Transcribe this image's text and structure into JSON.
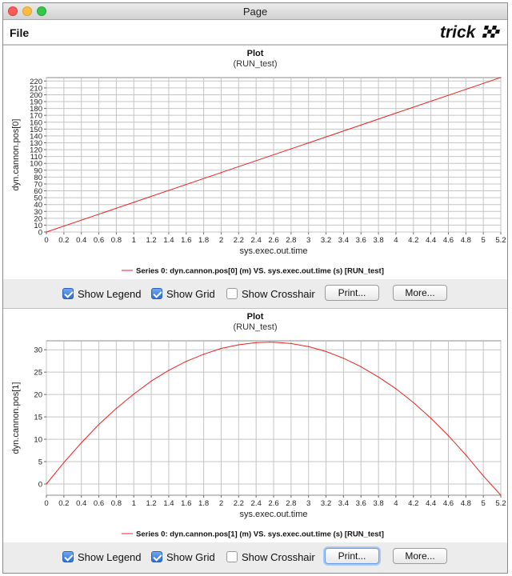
{
  "window": {
    "title": "Page"
  },
  "menu": {
    "file_label": "File",
    "logo_text": "trick"
  },
  "plots": [
    {
      "title": "Plot",
      "subtitle": "(RUN_test)",
      "xlabel": "sys.exec.out.time",
      "ylabel": "dyn.cannon.pos[0]",
      "legend": "Series 0: dyn.cannon.pos[0] (m) VS. sys.exec.out.time (s) [RUN_test]",
      "show_legend_label": "Show Legend",
      "show_grid_label": "Show Grid",
      "show_crosshair_label": "Show Crosshair",
      "print_label": "Print...",
      "more_label": "More..."
    },
    {
      "title": "Plot",
      "subtitle": "(RUN_test)",
      "xlabel": "sys.exec.out.time",
      "ylabel": "dyn.cannon.pos[1]",
      "legend": "Series 0: dyn.cannon.pos[1] (m) VS. sys.exec.out.time (s) [RUN_test]",
      "show_legend_label": "Show Legend",
      "show_grid_label": "Show Grid",
      "show_crosshair_label": "Show Crosshair",
      "print_label": "Print...",
      "more_label": "More..."
    }
  ],
  "chart_data": [
    {
      "type": "line",
      "title": "Plot",
      "subtitle": "(RUN_test)",
      "xlabel": "sys.exec.out.time",
      "ylabel": "dyn.cannon.pos[0]",
      "xlim": [
        0,
        5.2
      ],
      "ylim": [
        0,
        225
      ],
      "xticks": [
        "0",
        "0.2",
        "0.4",
        "0.6",
        "0.8",
        "1",
        "1.2",
        "1.4",
        "1.6",
        "1.8",
        "2",
        "2.2",
        "2.4",
        "2.6",
        "2.8",
        "3",
        "3.2",
        "3.4",
        "3.6",
        "3.8",
        "4",
        "4.2",
        "4.4",
        "4.6",
        "4.8",
        "5",
        "5.2"
      ],
      "yticks": [
        "0",
        "10",
        "20",
        "30",
        "40",
        "50",
        "60",
        "70",
        "80",
        "90",
        "100",
        "110",
        "120",
        "130",
        "140",
        "150",
        "160",
        "170",
        "180",
        "190",
        "200",
        "210",
        "220"
      ],
      "grid": true,
      "legend_position": "bottom",
      "series": [
        {
          "name": "Series 0: dyn.cannon.pos[0] (m) VS. sys.exec.out.time (s) [RUN_test]",
          "color": "#e8231f",
          "x": [
            0,
            1,
            2,
            3,
            4,
            5.2
          ],
          "y": [
            0,
            43.3,
            86.6,
            129.9,
            173.2,
            225.2
          ]
        }
      ]
    },
    {
      "type": "line",
      "title": "Plot",
      "subtitle": "(RUN_test)",
      "xlabel": "sys.exec.out.time",
      "ylabel": "dyn.cannon.pos[1]",
      "xlim": [
        0,
        5.2
      ],
      "ylim": [
        -2.5,
        32
      ],
      "xticks": [
        "0",
        "0.2",
        "0.4",
        "0.6",
        "0.8",
        "1",
        "1.2",
        "1.4",
        "1.6",
        "1.8",
        "2",
        "2.2",
        "2.4",
        "2.6",
        "2.8",
        "3",
        "3.2",
        "3.4",
        "3.6",
        "3.8",
        "4",
        "4.2",
        "4.4",
        "4.6",
        "4.8",
        "5",
        "5.2"
      ],
      "yticks": [
        "0",
        "5",
        "10",
        "15",
        "20",
        "25",
        "30"
      ],
      "grid": true,
      "legend_position": "bottom",
      "series": [
        {
          "name": "Series 0: dyn.cannon.pos[1] (m) VS. sys.exec.out.time (s) [RUN_test]",
          "color": "#e8231f",
          "x": [
            0,
            0.2,
            0.4,
            0.6,
            0.8,
            1.0,
            1.2,
            1.4,
            1.6,
            1.8,
            2.0,
            2.2,
            2.4,
            2.55,
            2.6,
            2.8,
            3.0,
            3.2,
            3.4,
            3.6,
            3.8,
            4.0,
            4.2,
            4.4,
            4.6,
            4.8,
            5.0,
            5.2
          ],
          "y": [
            0,
            4.8,
            9.2,
            13.3,
            16.9,
            20.1,
            23.0,
            25.4,
            27.4,
            29.0,
            30.3,
            31.1,
            31.6,
            31.7,
            31.7,
            31.4,
            30.7,
            29.6,
            28.1,
            26.2,
            23.9,
            21.3,
            18.2,
            14.7,
            10.8,
            6.5,
            1.8,
            -2.5
          ]
        }
      ]
    }
  ]
}
